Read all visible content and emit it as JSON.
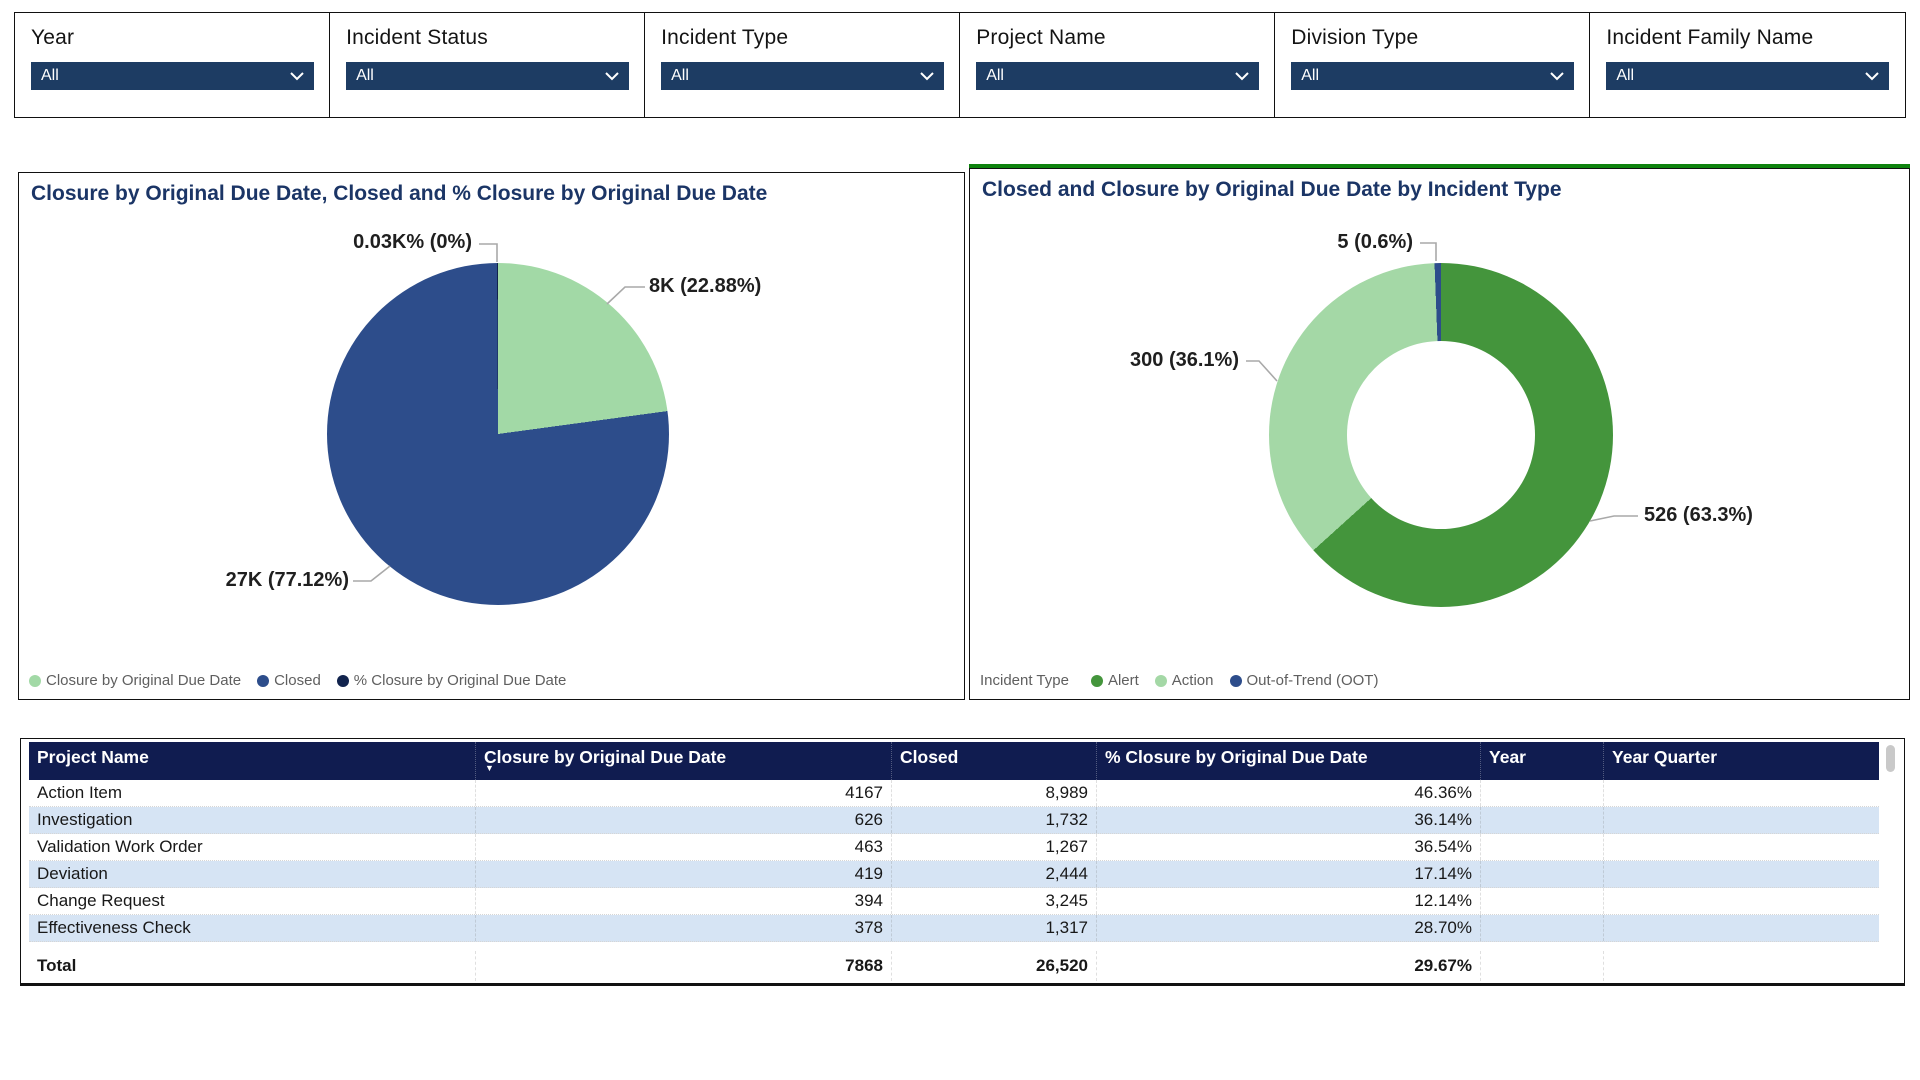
{
  "filters": {
    "items": [
      {
        "label": "Year",
        "value": "All"
      },
      {
        "label": "Incident Status",
        "value": "All"
      },
      {
        "label": "Incident Type",
        "value": "All"
      },
      {
        "label": "Project Name",
        "value": "All"
      },
      {
        "label": "Division Type",
        "value": "All"
      },
      {
        "label": "Incident Family Name",
        "value": "All"
      }
    ]
  },
  "left_chart": {
    "title": "Closure by Original Due Date, Closed and % Closure by Original Due Date"
  },
  "right_chart": {
    "title": "Closed and Closure by Original Due Date by Incident Type",
    "legend_title": "Incident Type"
  },
  "table": {
    "headers": [
      "Project Name",
      "Closure by Original Due Date",
      "Closed",
      "% Closure by Original Due Date",
      "Year",
      "Year Quarter"
    ],
    "rows": [
      [
        "Action Item",
        "4167",
        "8,989",
        "46.36%",
        "",
        ""
      ],
      [
        "Investigation",
        "626",
        "1,732",
        "36.14%",
        "",
        ""
      ],
      [
        "Validation Work Order",
        "463",
        "1,267",
        "36.54%",
        "",
        ""
      ],
      [
        "Deviation",
        "419",
        "2,444",
        "17.14%",
        "",
        ""
      ],
      [
        "Change Request",
        "394",
        "3,245",
        "12.14%",
        "",
        ""
      ],
      [
        "Effectiveness Check",
        "378",
        "1,317",
        "28.70%",
        "",
        ""
      ]
    ],
    "total": [
      "Total",
      "7868",
      "26,520",
      "29.67%",
      "",
      ""
    ]
  },
  "chart_data": [
    {
      "type": "pie",
      "title": "Closure by Original Due Date, Closed and % Closure by Original Due Date",
      "legend_position": "bottom",
      "series": [
        {
          "name": "Closure by Original Due Date",
          "value": 7868,
          "pct": 22.88,
          "label": "8K (22.88%)",
          "color": "#a2d9a6"
        },
        {
          "name": "Closed",
          "value": 26520,
          "pct": 77.12,
          "label": "27K (77.12%)",
          "color": "#2d4d8b"
        },
        {
          "name": "% Closure by Original Due Date",
          "value": 29.67,
          "pct": 0.09,
          "label": "0.03K% (0%)",
          "color": "#11234d"
        }
      ]
    },
    {
      "type": "donut",
      "title": "Closed and Closure by Original Due Date by Incident Type",
      "legend_title": "Incident Type",
      "legend_position": "bottom",
      "series": [
        {
          "name": "Alert",
          "value": 526,
          "pct": 63.3,
          "label": "526 (63.3%)",
          "color": "#44953c"
        },
        {
          "name": "Action",
          "value": 300,
          "pct": 36.1,
          "label": "300 (36.1%)",
          "color": "#a4d8a6"
        },
        {
          "name": "Out-of-Trend (OOT)",
          "value": 5,
          "pct": 0.6,
          "label": "5 (0.6%)",
          "color": "#2d4d8b"
        }
      ]
    },
    {
      "type": "table",
      "columns": [
        "Project Name",
        "Closure by Original Due Date",
        "Closed",
        "% Closure by Original Due Date",
        "Year",
        "Year Quarter"
      ],
      "rows": [
        [
          "Action Item",
          4167,
          8989,
          "46.36%",
          null,
          null
        ],
        [
          "Investigation",
          626,
          1732,
          "36.14%",
          null,
          null
        ],
        [
          "Validation Work Order",
          463,
          1267,
          "36.54%",
          null,
          null
        ],
        [
          "Deviation",
          419,
          2444,
          "17.14%",
          null,
          null
        ],
        [
          "Change Request",
          394,
          3245,
          "12.14%",
          null,
          null
        ],
        [
          "Effectiveness Check",
          378,
          1317,
          "28.70%",
          null,
          null
        ]
      ],
      "total": [
        "Total",
        7868,
        26520,
        "29.67%",
        null,
        null
      ]
    }
  ],
  "colors": {
    "slicer_dropdown": "#1d3c63",
    "table_header": "#101c50",
    "row_stripe": "#d6e4f4",
    "accent_green_line": "#0e830e",
    "title_navy": "#1b3566"
  }
}
